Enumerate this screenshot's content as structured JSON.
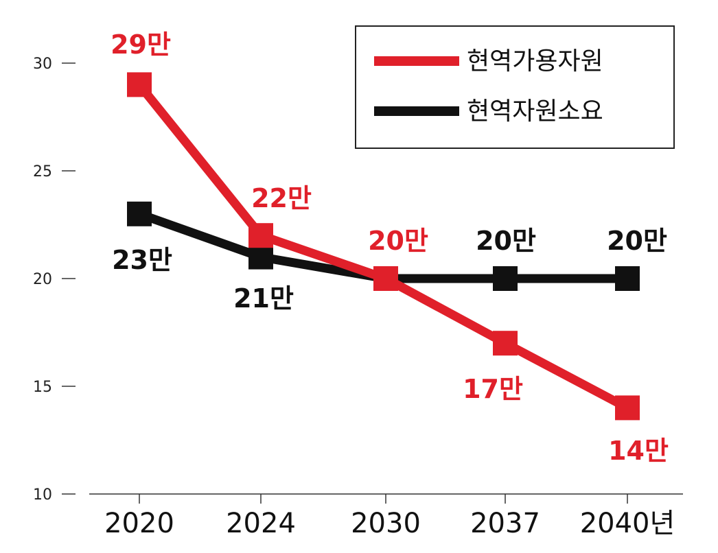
{
  "chart_data": {
    "type": "line",
    "categories": [
      "2020",
      "2024",
      "2030",
      "2037",
      "2040년"
    ],
    "ylim": [
      10,
      30
    ],
    "yticks": [
      "30",
      "25",
      "20",
      "15",
      "10"
    ],
    "grid": false,
    "legend_position": "top-right",
    "series": [
      {
        "name": "현역가용자원",
        "color": "#e0202a",
        "values": [
          29,
          22,
          20,
          17,
          14
        ],
        "labels": [
          "29만",
          "22만",
          "20만",
          "17만",
          "14만"
        ]
      },
      {
        "name": "현역자원소요",
        "color": "#111111",
        "values": [
          23,
          21,
          20,
          20,
          20
        ],
        "labels": [
          "23만",
          "21만",
          "",
          "20만",
          "20만"
        ]
      }
    ]
  }
}
